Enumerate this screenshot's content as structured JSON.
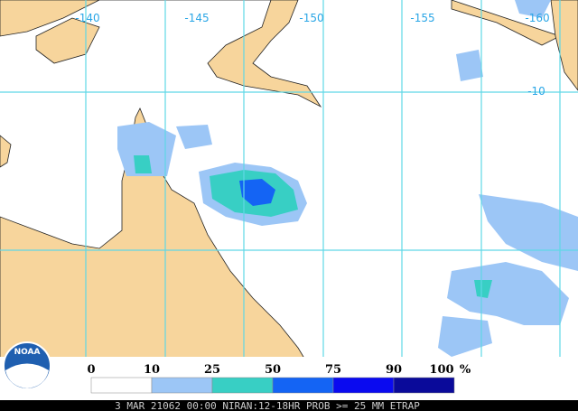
{
  "map": {
    "lon_labels": [
      "-140",
      "-145",
      "-150",
      "-155",
      "-160"
    ],
    "lat_labels": [
      "-10"
    ]
  },
  "legend": {
    "labels": [
      "0",
      "10",
      "25",
      "50",
      "75",
      "90",
      "100"
    ],
    "unit": "%",
    "colors": [
      "#ffffff",
      "#9cc6f6",
      "#38cfc4",
      "#1464f4",
      "#0a0af0",
      "#0a0a9a"
    ]
  },
  "logo": "NOAA",
  "caption": "3 MAR 21062 00:00 NIRAN:12-18HR PROB >= 25 MM ETRAP"
}
